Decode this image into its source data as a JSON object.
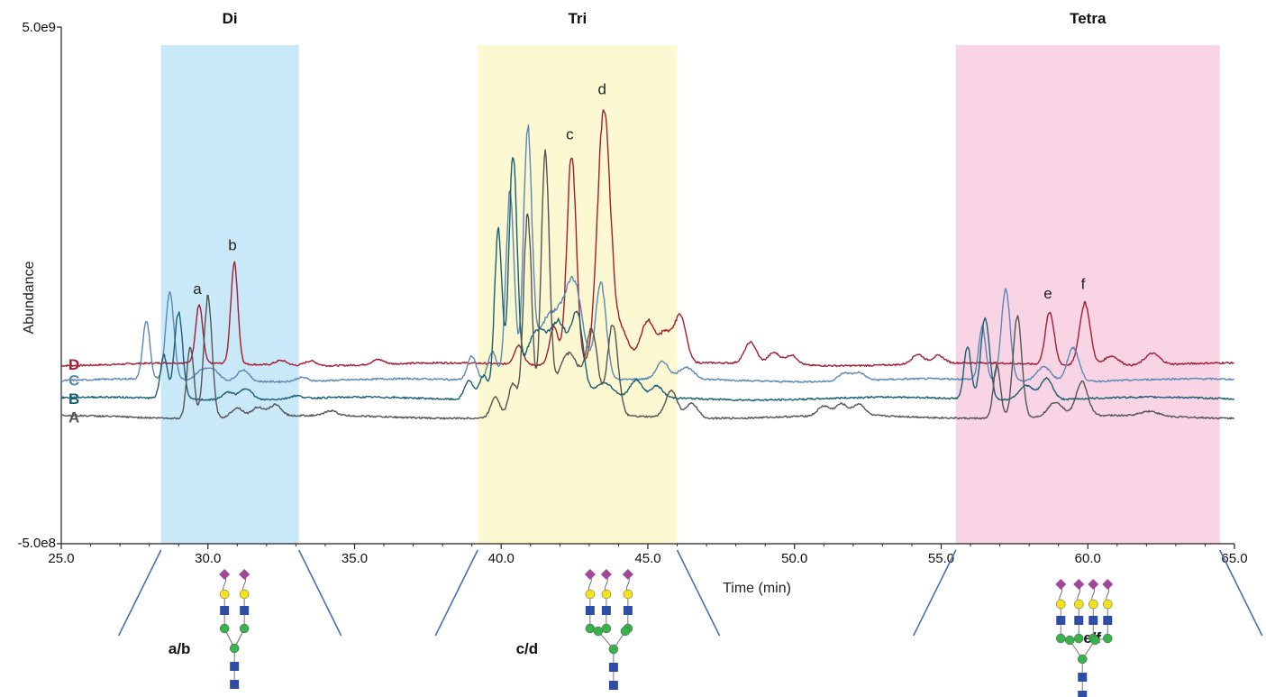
{
  "chart_data": {
    "type": "line",
    "title": "",
    "xlabel": "Time (min)",
    "ylabel": "Abundance",
    "xlim": [
      25.0,
      65.0
    ],
    "x_ticks": [
      "25.0",
      "30.0",
      "35.0",
      "40.0",
      "45.0",
      "50.0",
      "55.0",
      "60.0",
      "65.0"
    ],
    "y_ticks": [
      "5.0e9",
      "-5.0e8"
    ],
    "grid": false,
    "regions": [
      {
        "label": "Di",
        "x_start": 28.4,
        "x_end": 33.1,
        "color": "#c9e8f8",
        "glycan": "a/b"
      },
      {
        "label": "Tri",
        "x_start": 39.2,
        "x_end": 46.0,
        "color": "#fbf8d2",
        "glycan": "c/d"
      },
      {
        "label": "Tetra",
        "x_start": 55.5,
        "x_end": 64.5,
        "color": "#f8d4e4",
        "glycan": "e/f"
      }
    ],
    "series": [
      {
        "name": "D",
        "color": "#a41d31",
        "baseline": 0.355,
        "peaks": [
          {
            "x": 29.7,
            "h": 0.6,
            "w": 0.12
          },
          {
            "x": 30.9,
            "h": 1.05,
            "w": 0.12
          },
          {
            "x": 32.5,
            "h": 0.05,
            "w": 0.2
          },
          {
            "x": 33.5,
            "h": 0.05,
            "w": 0.2
          },
          {
            "x": 35.8,
            "h": 0.05,
            "w": 0.2
          },
          {
            "x": 40.6,
            "h": 0.2,
            "w": 0.15
          },
          {
            "x": 41.8,
            "h": 0.4,
            "w": 0.15
          },
          {
            "x": 42.4,
            "h": 2.2,
            "w": 0.16
          },
          {
            "x": 43.5,
            "h": 2.65,
            "w": 0.22
          },
          {
            "x": 44.1,
            "h": 0.35,
            "w": 0.25
          },
          {
            "x": 45.0,
            "h": 0.45,
            "w": 0.25
          },
          {
            "x": 45.6,
            "h": 0.3,
            "w": 0.2
          },
          {
            "x": 46.1,
            "h": 0.5,
            "w": 0.2
          },
          {
            "x": 48.5,
            "h": 0.22,
            "w": 0.2
          },
          {
            "x": 49.3,
            "h": 0.12,
            "w": 0.2
          },
          {
            "x": 49.9,
            "h": 0.1,
            "w": 0.2
          },
          {
            "x": 54.2,
            "h": 0.1,
            "w": 0.2
          },
          {
            "x": 54.9,
            "h": 0.08,
            "w": 0.2
          },
          {
            "x": 58.7,
            "h": 0.55,
            "w": 0.15
          },
          {
            "x": 59.9,
            "h": 0.65,
            "w": 0.18
          },
          {
            "x": 60.8,
            "h": 0.1,
            "w": 0.25
          },
          {
            "x": 62.2,
            "h": 0.12,
            "w": 0.25
          }
        ]
      },
      {
        "name": "C",
        "color": "#5b88b5",
        "baseline": 0.19,
        "peaks": [
          {
            "x": 27.9,
            "h": 0.6,
            "w": 0.12
          },
          {
            "x": 28.7,
            "h": 0.9,
            "w": 0.14
          },
          {
            "x": 29.8,
            "h": 0.1,
            "w": 0.2
          },
          {
            "x": 30.2,
            "h": 0.1,
            "w": 0.2
          },
          {
            "x": 31.2,
            "h": 0.12,
            "w": 0.2
          },
          {
            "x": 33.2,
            "h": 0.04,
            "w": 0.2
          },
          {
            "x": 39.0,
            "h": 0.25,
            "w": 0.15
          },
          {
            "x": 39.7,
            "h": 0.3,
            "w": 0.15
          },
          {
            "x": 40.3,
            "h": 1.95,
            "w": 0.14
          },
          {
            "x": 40.9,
            "h": 2.45,
            "w": 0.14
          },
          {
            "x": 41.7,
            "h": 0.7,
            "w": 0.5
          },
          {
            "x": 42.5,
            "h": 0.85,
            "w": 0.3
          },
          {
            "x": 43.4,
            "h": 1.0,
            "w": 0.18
          },
          {
            "x": 45.5,
            "h": 0.18,
            "w": 0.2
          },
          {
            "x": 46.3,
            "h": 0.12,
            "w": 0.25
          },
          {
            "x": 51.7,
            "h": 0.08,
            "w": 0.2
          },
          {
            "x": 52.2,
            "h": 0.08,
            "w": 0.2
          },
          {
            "x": 56.4,
            "h": 0.55,
            "w": 0.12
          },
          {
            "x": 57.2,
            "h": 0.95,
            "w": 0.15
          },
          {
            "x": 58.5,
            "h": 0.15,
            "w": 0.25
          },
          {
            "x": 59.5,
            "h": 0.35,
            "w": 0.2
          }
        ]
      },
      {
        "name": "B",
        "color": "#1a5f74",
        "baseline": 0.0,
        "peaks": [
          {
            "x": 28.5,
            "h": 0.45,
            "w": 0.12
          },
          {
            "x": 29.0,
            "h": 0.9,
            "w": 0.14
          },
          {
            "x": 30.7,
            "h": 0.08,
            "w": 0.2
          },
          {
            "x": 31.3,
            "h": 0.12,
            "w": 0.2
          },
          {
            "x": 33.0,
            "h": 0.03,
            "w": 0.2
          },
          {
            "x": 38.9,
            "h": 0.2,
            "w": 0.15
          },
          {
            "x": 39.4,
            "h": 0.25,
            "w": 0.15
          },
          {
            "x": 39.9,
            "h": 1.75,
            "w": 0.13
          },
          {
            "x": 40.4,
            "h": 2.45,
            "w": 0.14
          },
          {
            "x": 41.2,
            "h": 0.7,
            "w": 0.4
          },
          {
            "x": 42.0,
            "h": 0.7,
            "w": 0.3
          },
          {
            "x": 42.6,
            "h": 0.8,
            "w": 0.2
          },
          {
            "x": 43.5,
            "h": 0.15,
            "w": 0.3
          },
          {
            "x": 44.6,
            "h": 0.18,
            "w": 0.2
          },
          {
            "x": 45.3,
            "h": 0.12,
            "w": 0.2
          },
          {
            "x": 55.9,
            "h": 0.55,
            "w": 0.12
          },
          {
            "x": 56.5,
            "h": 0.85,
            "w": 0.15
          },
          {
            "x": 57.9,
            "h": 0.15,
            "w": 0.25
          },
          {
            "x": 58.6,
            "h": 0.22,
            "w": 0.2
          }
        ]
      },
      {
        "name": "A",
        "color": "#555555",
        "baseline": -0.19,
        "peaks": [
          {
            "x": 29.4,
            "h": 0.75,
            "w": 0.12
          },
          {
            "x": 30.0,
            "h": 1.25,
            "w": 0.14
          },
          {
            "x": 31.0,
            "h": 0.1,
            "w": 0.2
          },
          {
            "x": 31.7,
            "h": 0.1,
            "w": 0.2
          },
          {
            "x": 32.3,
            "h": 0.12,
            "w": 0.2
          },
          {
            "x": 34.2,
            "h": 0.05,
            "w": 0.2
          },
          {
            "x": 39.8,
            "h": 0.22,
            "w": 0.15
          },
          {
            "x": 40.4,
            "h": 0.35,
            "w": 0.15
          },
          {
            "x": 40.9,
            "h": 2.1,
            "w": 0.14
          },
          {
            "x": 41.5,
            "h": 2.65,
            "w": 0.14
          },
          {
            "x": 42.3,
            "h": 0.65,
            "w": 0.4
          },
          {
            "x": 43.1,
            "h": 0.8,
            "w": 0.2
          },
          {
            "x": 43.8,
            "h": 0.95,
            "w": 0.18
          },
          {
            "x": 45.8,
            "h": 0.28,
            "w": 0.2
          },
          {
            "x": 46.5,
            "h": 0.15,
            "w": 0.2
          },
          {
            "x": 51.0,
            "h": 0.1,
            "w": 0.2
          },
          {
            "x": 51.6,
            "h": 0.12,
            "w": 0.2
          },
          {
            "x": 52.2,
            "h": 0.12,
            "w": 0.2
          },
          {
            "x": 56.9,
            "h": 0.55,
            "w": 0.12
          },
          {
            "x": 57.6,
            "h": 1.05,
            "w": 0.15
          },
          {
            "x": 58.9,
            "h": 0.15,
            "w": 0.25
          },
          {
            "x": 59.8,
            "h": 0.35,
            "w": 0.2
          },
          {
            "x": 62.1,
            "h": 0.05,
            "w": 0.3
          }
        ]
      }
    ],
    "peak_labels": [
      {
        "text": "a",
        "x": 29.7,
        "series": "D"
      },
      {
        "text": "b",
        "x": 30.9,
        "series": "D"
      },
      {
        "text": "c",
        "x": 42.4,
        "series": "D"
      },
      {
        "text": "d",
        "x": 43.5,
        "series": "D"
      },
      {
        "text": "e",
        "x": 58.7,
        "series": "D"
      },
      {
        "text": "f",
        "x": 59.9,
        "series": "D"
      }
    ]
  },
  "colors": {
    "glycan_sialic": "#a0489a",
    "glycan_galactose": "#f6e21a",
    "glycan_glcnac": "#2e4ea3",
    "glycan_mannose": "#36b34a",
    "connector": "#4a6fb3"
  }
}
